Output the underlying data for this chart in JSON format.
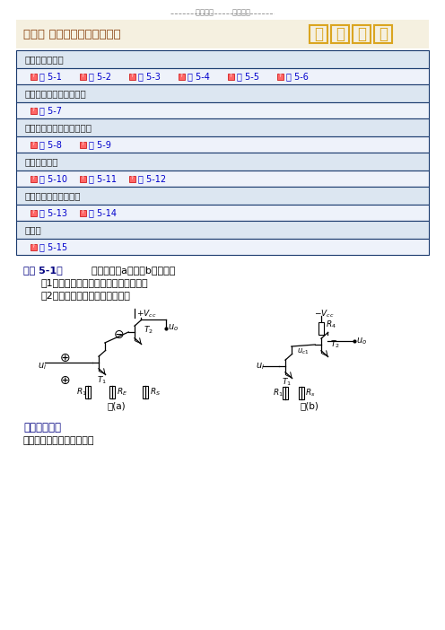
{
  "page_bg": "#ffffff",
  "header_text": "学习必备        欢迎下载",
  "header_color": "#888888",
  "title_bg": "#f5f0e0",
  "title_text": "第五章 反馈和负反馈放大电路",
  "title_color": "#8B4513",
  "stamp_color": "#DAA520",
  "table_bg_header": "#dce6f1",
  "table_bg_row": "#eef2fa",
  "table_border": "#1a3a6e",
  "table_sections": [
    {
      "label": "反馈的基本概念",
      "links": [
        "例 5-1",
        "例 5-2",
        "例 5-3",
        "例 5-4",
        "例 5-5",
        "例 5-6"
      ]
    },
    {
      "label": "负反馈对电路性能的影响",
      "links": [
        "例 5-7"
      ]
    },
    {
      "label": "负反馈方框图及一般表示式",
      "links": [
        "例 5-8",
        "例 5-9"
      ]
    },
    {
      "label": "负反馈的引入",
      "links": [
        "例 5-10",
        "例 5-11",
        "例 5-12"
      ]
    },
    {
      "label": "负反馈电路的自激振荡",
      "links": [
        "例 5-13",
        "例 5-14"
      ]
    },
    {
      "label": "正反馈",
      "links": [
        "例 5-15"
      ]
    }
  ],
  "example_title": "【例 5-1】",
  "example_desc": "    电路如图（a）、（b）所示。",
  "q1": "（1）判断指示电路的反馈极性及类型；",
  "q2": "（2）求出反馈电路的反馈系数。",
  "related_title": "【相关知识】",
  "related_text": "负反馈及负反馈放大电路。",
  "link_color": "#0000cd",
  "text_color": "#000000"
}
